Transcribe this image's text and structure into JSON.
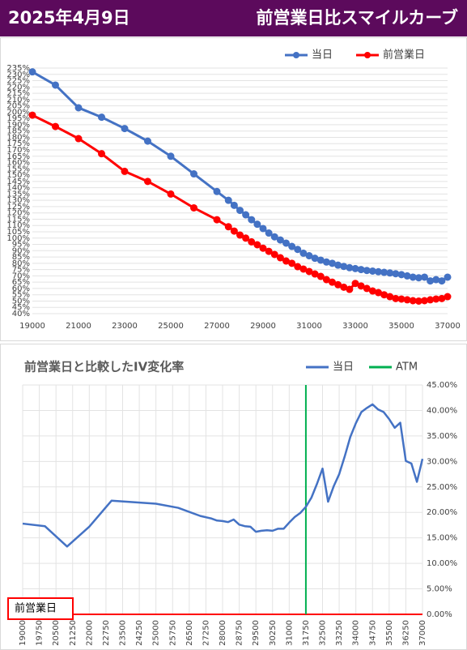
{
  "header": {
    "date": "2025年4月9日",
    "title": "前営業日比スマイルカーブ"
  },
  "chart_data": [
    {
      "type": "line",
      "markers": true,
      "grid": [
        "y"
      ],
      "x": [
        19000,
        20000,
        21000,
        22000,
        23000,
        24000,
        25000,
        26000,
        27000,
        27500,
        27750,
        28000,
        28250,
        28500,
        28750,
        29000,
        29250,
        29500,
        29750,
        30000,
        30250,
        30500,
        30750,
        31000,
        31250,
        31500,
        31750,
        32000,
        32250,
        32500,
        32750,
        33000,
        33250,
        33500,
        33750,
        34000,
        34250,
        34500,
        34750,
        35000,
        35250,
        35500,
        35750,
        36000,
        36250,
        36500,
        36750,
        37000
      ],
      "series": [
        {
          "name": "当日",
          "color": "#4472c4",
          "values": [
            232,
            221.5,
            203.5,
            196,
            187,
            177,
            165,
            151,
            137,
            130,
            126,
            122,
            118.5,
            114.6,
            111,
            107.6,
            104,
            101,
            98.5,
            96,
            93.4,
            91,
            88,
            86,
            84,
            82.5,
            81,
            80,
            78.5,
            77.5,
            76.5,
            75.8,
            75,
            74.3,
            73.8,
            73.3,
            72.8,
            72.3,
            71.7,
            71,
            70,
            69,
            68.5,
            69,
            66,
            67,
            66,
            69
          ]
        },
        {
          "name": "前営業日",
          "color": "#ff0000",
          "values": [
            197.6,
            188.6,
            179,
            167,
            153,
            145,
            135,
            124,
            114.6,
            109,
            105.6,
            102.4,
            100,
            97,
            94.7,
            92,
            89.5,
            87,
            84.4,
            81.8,
            80,
            77.3,
            75.4,
            73.5,
            71.5,
            69.6,
            67,
            65,
            63,
            61,
            59.3,
            64,
            62,
            60,
            58,
            56.7,
            55,
            53.5,
            52,
            51.6,
            51,
            50.3,
            50,
            50.3,
            51,
            51.6,
            52,
            53.5
          ]
        }
      ],
      "xlim": [
        19000,
        37000
      ],
      "xticks": [
        19000,
        21000,
        23000,
        25000,
        27000,
        29000,
        31000,
        33000,
        35000,
        37000
      ],
      "ylim": [
        40,
        235
      ],
      "yticks": [
        {
          "value": 40,
          "label": "40%"
        },
        {
          "value": 45,
          "label": "45%"
        },
        {
          "value": 50,
          "label": "50%"
        },
        {
          "value": 55,
          "label": "55%"
        },
        {
          "value": 60,
          "label": "60%"
        },
        {
          "value": 65,
          "label": "65%"
        },
        {
          "value": 70,
          "label": "70%"
        },
        {
          "value": 75,
          "label": "75%"
        },
        {
          "value": 80,
          "label": "80%"
        },
        {
          "value": 85,
          "label": "85%"
        },
        {
          "value": 90,
          "label": "90%"
        },
        {
          "value": 95,
          "label": "95%"
        },
        {
          "value": 100,
          "label": "100%"
        },
        {
          "value": 105,
          "label": "105%"
        },
        {
          "value": 110,
          "label": "110%"
        },
        {
          "value": 115,
          "label": "115%"
        },
        {
          "value": 120,
          "label": "120%"
        },
        {
          "value": 125,
          "label": "125%"
        },
        {
          "value": 130,
          "label": "130%"
        },
        {
          "value": 135,
          "label": "135%"
        },
        {
          "value": 140,
          "label": "140%"
        },
        {
          "value": 145,
          "label": "145%"
        },
        {
          "value": 150,
          "label": "150%"
        },
        {
          "value": 155,
          "label": "155%"
        },
        {
          "value": 160,
          "label": "160%"
        },
        {
          "value": 165,
          "label": "165%"
        },
        {
          "value": 170,
          "label": "170%"
        },
        {
          "value": 175,
          "label": "175%"
        },
        {
          "value": 180,
          "label": "180%"
        },
        {
          "value": 185,
          "label": "185%"
        },
        {
          "value": 190,
          "label": "190%"
        },
        {
          "value": 195,
          "label": "195%"
        },
        {
          "value": 200,
          "label": "200%"
        },
        {
          "value": 205,
          "label": "205%"
        },
        {
          "value": 210,
          "label": "210%"
        },
        {
          "value": 215,
          "label": "215%"
        },
        {
          "value": 220,
          "label": "220%"
        },
        {
          "value": 225,
          "label": "225%"
        },
        {
          "value": 230,
          "label": "230%"
        },
        {
          "value": 235,
          "label": "235%"
        }
      ]
    },
    {
      "type": "line",
      "markers": false,
      "grid": [
        "x",
        "y"
      ],
      "title": "前営業日と比較したIV変化率",
      "x": [
        19000,
        20000,
        21000,
        22000,
        23000,
        24000,
        25000,
        26000,
        27000,
        27500,
        27750,
        28000,
        28250,
        28500,
        28750,
        29000,
        29250,
        29500,
        29750,
        30000,
        30250,
        30500,
        30750,
        31000,
        31250,
        31500,
        31750,
        32000,
        32250,
        32500,
        32750,
        33000,
        33250,
        33500,
        33750,
        34000,
        34250,
        34500,
        34750,
        35000,
        35250,
        35500,
        35750,
        36000,
        36250,
        36500,
        36750,
        37000
      ],
      "series": [
        {
          "name": "当日",
          "color": "#4472c4",
          "values": [
            17.8,
            17.3,
            13.3,
            17.2,
            22.3,
            22.0,
            21.7,
            20.9,
            19.3,
            18.8,
            18.4,
            18.3,
            18.1,
            18.6,
            17.6,
            17.3,
            17.2,
            16.2,
            16.4,
            16.5,
            16.4,
            16.8,
            16.8,
            18.0,
            19.1,
            19.9,
            21.1,
            22.9,
            25.6,
            28.6,
            22.1,
            25.1,
            27.5,
            31.0,
            34.8,
            37.5,
            39.7,
            40.5,
            41.2,
            40.2,
            39.7,
            38.3,
            36.6,
            37.6,
            30.1,
            29.6,
            26.0,
            30.5
          ]
        }
      ],
      "atm": {
        "name": "ATM",
        "x": 31750,
        "color": "#00b050"
      },
      "baseline": {
        "name": "前営業日",
        "value": 0,
        "color": "#ff0000"
      },
      "xlim": [
        19000,
        37000
      ],
      "xticks": [
        19000,
        19750,
        20500,
        21250,
        22000,
        22750,
        23500,
        24250,
        25000,
        25750,
        26500,
        27250,
        28000,
        28750,
        29500,
        30250,
        31000,
        31750,
        32500,
        33250,
        34000,
        34750,
        35500,
        36250,
        37000
      ],
      "ylim": [
        0,
        45
      ],
      "yticks": [
        {
          "value": 0,
          "label": "0.00%"
        },
        {
          "value": 5,
          "label": "5.00%"
        },
        {
          "value": 10,
          "label": "10.00%"
        },
        {
          "value": 15,
          "label": "15.00%"
        },
        {
          "value": 20,
          "label": "20.00%"
        },
        {
          "value": 25,
          "label": "25.00%"
        },
        {
          "value": 30,
          "label": "30.00%"
        },
        {
          "value": 35,
          "label": "35.00%"
        },
        {
          "value": 40,
          "label": "40.00%"
        },
        {
          "value": 45,
          "label": "45.00%"
        }
      ]
    }
  ]
}
